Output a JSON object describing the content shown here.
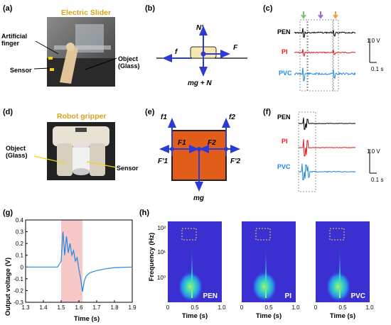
{
  "panels": {
    "a": {
      "label": "(a)",
      "title": "Electric Slider",
      "labels": [
        "Artificial finger",
        "Sensor",
        "Object (Glass)"
      ]
    },
    "b": {
      "label": "(b)",
      "forces": {
        "top": "N'",
        "left": "f",
        "right": "F",
        "bottom": "mg + N"
      }
    },
    "c": {
      "label": "(c)",
      "signals": [
        {
          "name": "PEN",
          "color": "#000000"
        },
        {
          "name": "PI",
          "color": "#e8141b"
        },
        {
          "name": "PVC",
          "color": "#1e88e5"
        }
      ],
      "scale_v": "1.0 V",
      "scale_t": "0.1 s",
      "arrow_colors": [
        "#7cc36b",
        "#9b6ccf",
        "#f29a4a"
      ]
    },
    "d": {
      "label": "(d)",
      "title": "Robot gripper",
      "labels": [
        "Object (Glass)",
        "Sensor"
      ]
    },
    "e": {
      "label": "(e)",
      "forces": {
        "f1": "f1",
        "f2": "f2",
        "F1": "F1",
        "F2": "F2",
        "F1p": "F'1",
        "F2p": "F'2",
        "mg": "mg"
      }
    },
    "f": {
      "label": "(f)",
      "signals": [
        {
          "name": "PEN",
          "color": "#000000"
        },
        {
          "name": "PI",
          "color": "#e8141b"
        },
        {
          "name": "PVC",
          "color": "#1e88e5"
        }
      ],
      "scale_v": "1.0 V",
      "scale_t": "0.1 s"
    },
    "g": {
      "label": "(g)",
      "xlabel": "Time (s)",
      "ylabel": "Output voltage (V)",
      "xticks": [
        "1.3",
        "1.4",
        "1.5",
        "1.6",
        "1.7",
        "1.8",
        "1.9"
      ],
      "yticks": [
        "0.4",
        "0.3",
        "0.2",
        "0.1",
        "0",
        "-0.1",
        "-0.2",
        "-0.3"
      ],
      "highlight_range": [
        1.5,
        1.62
      ],
      "highlight_color": "#f6c8c8"
    },
    "h": {
      "label": "(h)",
      "ylabel": "Frequency (Hz)",
      "xlabel": "Time (s)",
      "yticks": [
        "10²",
        "10¹",
        "10⁰"
      ],
      "xticks": [
        "0",
        "0.5",
        "1.0"
      ],
      "spectrograms": [
        "PEN",
        "PI",
        "PVC"
      ],
      "background_color": "#3a2fd0"
    }
  },
  "chart_data": {
    "type": "line",
    "xlabel": "Time (s)",
    "ylabel": "Output voltage (V)",
    "xlim": [
      1.3,
      1.9
    ],
    "ylim": [
      -0.3,
      0.4
    ],
    "series": [
      {
        "x": [
          1.3,
          1.4,
          1.48,
          1.5,
          1.51,
          1.52,
          1.53,
          1.54,
          1.55,
          1.56,
          1.57,
          1.58,
          1.59,
          1.6,
          1.61,
          1.62,
          1.63,
          1.64,
          1.66,
          1.7,
          1.75,
          1.8,
          1.9
        ],
        "values": [
          0.0,
          0.0,
          0.0,
          0.05,
          0.3,
          0.1,
          0.26,
          0.12,
          0.2,
          0.1,
          0.14,
          0.05,
          0.08,
          -0.02,
          -0.1,
          -0.21,
          -0.12,
          -0.08,
          -0.05,
          -0.03,
          -0.015,
          -0.005,
          0.0
        ],
        "color": "#1e88e5"
      }
    ]
  }
}
